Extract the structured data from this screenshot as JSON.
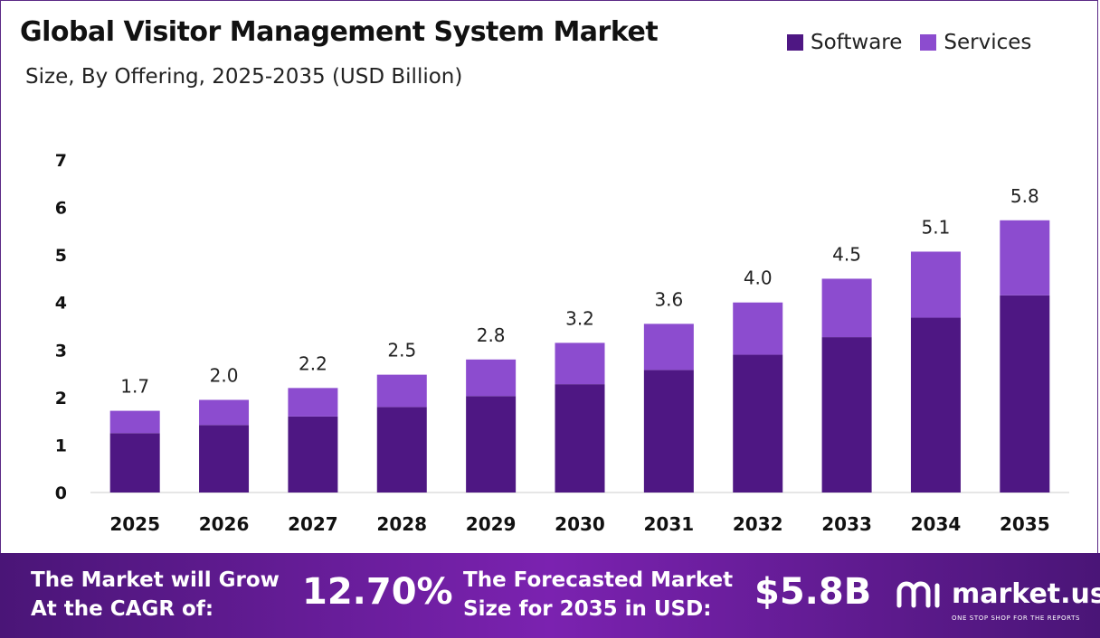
{
  "title": "Global Visitor Management System Market",
  "subtitle": "Size, By Offering, 2025-2035 (USD Billion)",
  "legend": [
    {
      "label": "Software",
      "color": "#4e1783"
    },
    {
      "label": "Services",
      "color": "#8c4ccf"
    }
  ],
  "chart_data": {
    "type": "bar",
    "stacked": true,
    "categories": [
      "2025",
      "2026",
      "2027",
      "2028",
      "2029",
      "2030",
      "2031",
      "2032",
      "2033",
      "2034",
      "2035"
    ],
    "series": [
      {
        "name": "Software",
        "color": "#4e1783",
        "values": [
          1.25,
          1.42,
          1.6,
          1.8,
          2.03,
          2.28,
          2.58,
          2.9,
          3.27,
          3.68,
          4.15
        ]
      },
      {
        "name": "Services",
        "color": "#8c4ccf",
        "values": [
          0.47,
          0.53,
          0.6,
          0.68,
          0.77,
          0.87,
          0.97,
          1.1,
          1.23,
          1.39,
          1.58
        ]
      }
    ],
    "totals": [
      "1.7",
      "2.0",
      "2.2",
      "2.5",
      "2.8",
      "3.2",
      "3.6",
      "4.0",
      "4.5",
      "5.1",
      "5.8"
    ],
    "yticks": [
      "0",
      "1",
      "2",
      "3",
      "4",
      "5",
      "6",
      "7"
    ],
    "ylim": [
      0,
      7
    ],
    "grid": false,
    "legend_position": "top-right"
  },
  "banner": {
    "cagr_text": "The Market will Grow\nAt the CAGR of:",
    "cagr_value": "12.70%",
    "forecast_text": "The Forecasted Market\nSize for 2035 in USD:",
    "forecast_value": "$5.8B",
    "brand": "market.us",
    "tagline": "ONE STOP SHOP FOR THE REPORTS"
  }
}
